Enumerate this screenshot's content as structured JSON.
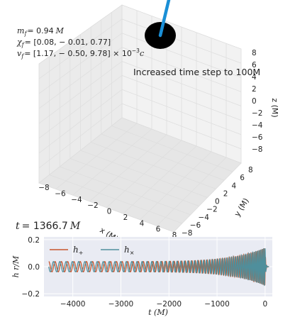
{
  "remnant": {
    "mass_line": "m_f = 0.94 M",
    "spin_line": "χ_f = [0.08, −0.01, 0.77]",
    "kick_line": "v_f = [1.17, −0.50, 9.78] × 10^−3 c",
    "mass_lhs": "m",
    "mass_sub": "f",
    "mass_rhs": "= 0.94",
    "spin_lhs": "χ",
    "spin_sub": "f",
    "spin_rhs": "= [0.08, − 0.01, 0.77]",
    "kick_lhs": "v",
    "kick_sub": "f",
    "kick_rhs": "= [1.17, − 0.50, 9.78] × 10",
    "kick_exp": "−3",
    "M": "M",
    "c": "c"
  },
  "annotation": "Increased time step to 100M",
  "time_label": "t = 1366.7 M",
  "time_lhs": "t",
  "time_value": "= 1366.7",
  "colors": {
    "h_plus": "#c8552d",
    "h_cross": "#4f8f9c",
    "spin_arrow": "#1a8fd6",
    "panel_bg": "#e9ebf3",
    "grid": "#ffffff",
    "pane_wall": "#eeeeee",
    "pane_grid": "#dddddd"
  },
  "axes3d": {
    "x_label": "x (M)",
    "y_label": "y (M)",
    "z_label": "z (M)",
    "x_ticks": [
      "−8",
      "−6",
      "−4",
      "−2",
      "0",
      "2",
      "4",
      "6",
      "8"
    ],
    "y_ticks": [
      "−8",
      "−6",
      "−4",
      "−2",
      "0",
      "2",
      "4",
      "6",
      "8"
    ],
    "z_ticks": [
      "8",
      "6",
      "4",
      "2",
      "0",
      "−2",
      "−4",
      "−6",
      "−8"
    ],
    "range": [
      -8,
      8
    ]
  },
  "chart_data": {
    "type": "line",
    "xlabel": "t (M)",
    "ylabel": "h r/M",
    "xlim": [
      -4600,
      150
    ],
    "ylim": [
      -0.22,
      0.22
    ],
    "xticks": [
      -4000,
      -3000,
      -2000,
      -1000,
      0
    ],
    "xtick_labels": [
      "−4000",
      "−3000",
      "−2000",
      "−1000",
      "0"
    ],
    "yticks": [
      0.2,
      0.0,
      -0.2
    ],
    "ytick_labels": [
      "0.2",
      "0.0",
      "−0.2"
    ],
    "legend_position": "top-left",
    "t_start": -4500,
    "t_peak": 0,
    "t_end": 80,
    "amplitude_start": 0.038,
    "amplitude_peak": 0.14,
    "cycles": 48,
    "series": [
      {
        "name": "h₊",
        "legend_base": "h",
        "legend_sub": "+"
      },
      {
        "name": "h×",
        "legend_base": "h",
        "legend_sub": "×"
      }
    ]
  }
}
